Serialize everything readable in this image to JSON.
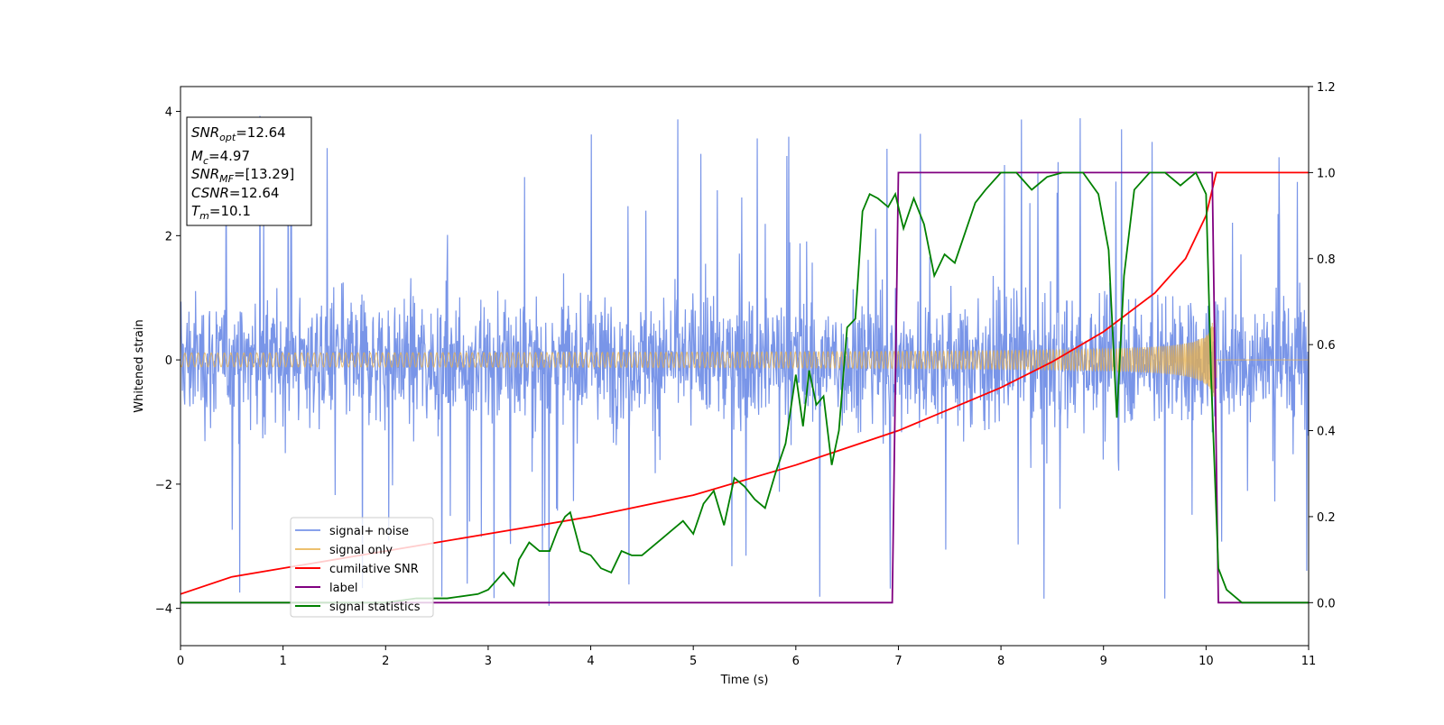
{
  "chart_data": {
    "type": "line",
    "xlabel": "Time (s)",
    "ylabel": "Whitened strain",
    "xlim": [
      0,
      11
    ],
    "ylim_left": [
      -4.6,
      4.4
    ],
    "ylim_right": [
      -0.1,
      1.2
    ],
    "x_ticks": [
      "0",
      "1",
      "2",
      "3",
      "4",
      "5",
      "6",
      "7",
      "8",
      "9",
      "10",
      "11"
    ],
    "y_ticks_left": [
      "4",
      "2",
      "0",
      "−2",
      "−4"
    ],
    "y_ticks_right": [
      "1.2",
      "1.0",
      "0.8",
      "0.6",
      "0.4",
      "0.2",
      "0.0"
    ],
    "grid": false,
    "legend_position": "lower-left",
    "info_box": {
      "lines": [
        {
          "main": "SNR",
          "sub": "opt",
          "value": "=12.64"
        },
        {
          "main": "M",
          "sub": "c",
          "value": "=4.97"
        },
        {
          "main": "SNR",
          "sub": "MF",
          "value": "=[13.29]"
        },
        {
          "main": "CSNR",
          "sub": "",
          "value": "=12.64"
        },
        {
          "main": "T",
          "sub": "m",
          "value": "=10.1"
        }
      ]
    },
    "series": [
      {
        "name": "signal+ noise",
        "color": "#6a8ae6",
        "axis": "left",
        "kind": "noise_band",
        "envelope_typical": 1.6,
        "envelope_extreme": 4.0,
        "x_range": [
          0,
          11
        ]
      },
      {
        "name": "signal only",
        "color": "#e8b04a",
        "axis": "left",
        "kind": "chirp",
        "x_range": [
          0,
          10.1
        ],
        "start_amplitude": 0.08,
        "end_amplitude": 0.8,
        "merger_time": 10.1
      },
      {
        "name": "cumilative SNR",
        "color": "#ff0000",
        "axis": "right",
        "x": [
          0,
          0.5,
          1,
          2,
          3,
          4,
          5,
          6,
          7,
          8,
          8.5,
          9,
          9.5,
          9.8,
          10.0,
          10.1,
          11
        ],
        "y": [
          0.02,
          0.06,
          0.08,
          0.12,
          0.16,
          0.2,
          0.25,
          0.32,
          0.4,
          0.5,
          0.56,
          0.63,
          0.72,
          0.8,
          0.9,
          1.0,
          1.0
        ]
      },
      {
        "name": "label",
        "color": "#800080",
        "axis": "right",
        "x": [
          0,
          6.94,
          7.0,
          10.06,
          10.12,
          11
        ],
        "y": [
          0.0,
          0.0,
          1.0,
          1.0,
          0.0,
          0.0
        ]
      },
      {
        "name": "signal statistics",
        "color": "#008000",
        "axis": "right",
        "x": [
          0,
          1,
          2,
          2.3,
          2.6,
          2.9,
          3.0,
          3.15,
          3.25,
          3.3,
          3.4,
          3.5,
          3.6,
          3.68,
          3.75,
          3.8,
          3.9,
          4.0,
          4.1,
          4.2,
          4.3,
          4.4,
          4.5,
          4.6,
          4.7,
          4.8,
          4.9,
          5.0,
          5.1,
          5.2,
          5.3,
          5.4,
          5.5,
          5.6,
          5.7,
          5.8,
          5.9,
          6.0,
          6.07,
          6.13,
          6.2,
          6.27,
          6.35,
          6.42,
          6.5,
          6.58,
          6.65,
          6.72,
          6.8,
          6.9,
          6.97,
          7.05,
          7.15,
          7.25,
          7.35,
          7.45,
          7.55,
          7.65,
          7.75,
          7.85,
          8.0,
          8.15,
          8.3,
          8.45,
          8.6,
          8.8,
          8.95,
          9.05,
          9.13,
          9.2,
          9.3,
          9.45,
          9.6,
          9.75,
          9.9,
          10.0,
          10.05,
          10.12,
          10.2,
          10.35,
          11
        ],
        "y": [
          0.0,
          0.0,
          0.0,
          0.01,
          0.01,
          0.02,
          0.03,
          0.07,
          0.04,
          0.1,
          0.14,
          0.12,
          0.12,
          0.17,
          0.2,
          0.21,
          0.12,
          0.11,
          0.08,
          0.07,
          0.12,
          0.11,
          0.11,
          0.13,
          0.15,
          0.17,
          0.19,
          0.16,
          0.23,
          0.26,
          0.18,
          0.29,
          0.27,
          0.24,
          0.22,
          0.3,
          0.37,
          0.53,
          0.41,
          0.54,
          0.46,
          0.48,
          0.32,
          0.4,
          0.64,
          0.66,
          0.91,
          0.95,
          0.94,
          0.92,
          0.95,
          0.87,
          0.94,
          0.88,
          0.76,
          0.81,
          0.79,
          0.86,
          0.93,
          0.96,
          1.0,
          1.0,
          0.96,
          0.99,
          1.0,
          1.0,
          0.95,
          0.82,
          0.43,
          0.76,
          0.96,
          1.0,
          1.0,
          0.97,
          1.0,
          0.95,
          0.52,
          0.08,
          0.03,
          0.0,
          0.0
        ]
      }
    ]
  }
}
